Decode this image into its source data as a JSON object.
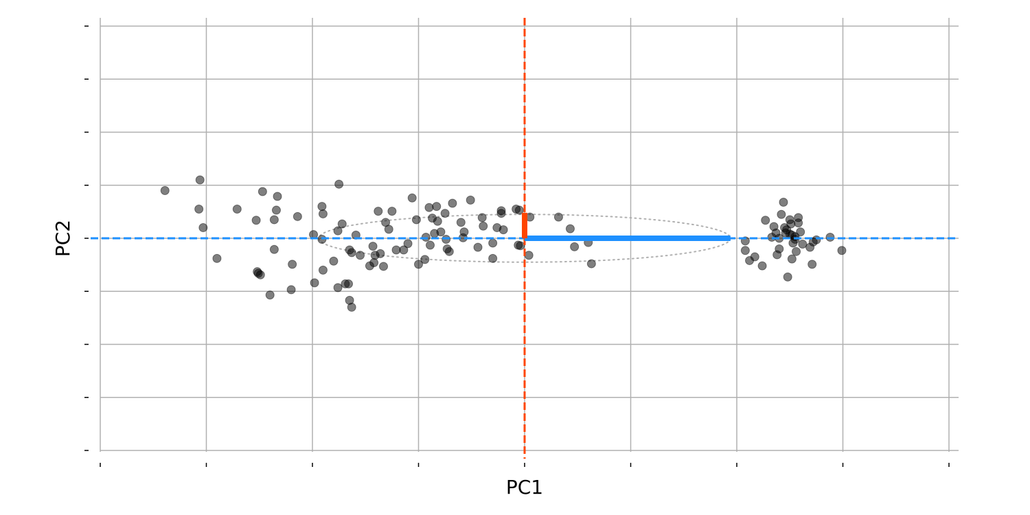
{
  "chart_data": {
    "type": "scatter",
    "title": "",
    "xlabel": "PC1",
    "ylabel": "PC2",
    "xlim": [
      -4,
      4
    ],
    "ylim": [
      -4,
      4
    ],
    "x_ticks": [
      -4,
      -3,
      -2,
      -1,
      0,
      1,
      2,
      3,
      4
    ],
    "y_ticks": [
      -4,
      -3,
      -2,
      -1,
      0,
      1,
      2,
      3,
      4
    ],
    "tick_labels_visible": false,
    "grid": true,
    "colors": {
      "points": "#000000",
      "pc1_axis": "#1E90FF",
      "pc2_axis": "#FF4500",
      "ellipse": "#b0b0b0",
      "grid": "#b0b0b0"
    },
    "center": [
      0.0,
      0.0
    ],
    "pc1_arrow": [
      1.94,
      0.0
    ],
    "pc2_arrow": [
      0.0,
      0.48
    ],
    "ellipse": {
      "rx": 1.94,
      "ry": 0.45
    },
    "points": [
      [
        -3.39,
        0.9
      ],
      [
        -3.06,
        1.1
      ],
      [
        -2.47,
        0.88
      ],
      [
        -2.33,
        0.79
      ],
      [
        -3.07,
        0.55
      ],
      [
        -3.03,
        0.2
      ],
      [
        -2.71,
        0.55
      ],
      [
        -2.53,
        0.34
      ],
      [
        -2.36,
        0.35
      ],
      [
        -2.34,
        0.53
      ],
      [
        -2.14,
        0.41
      ],
      [
        -1.91,
        0.6
      ],
      [
        -1.9,
        0.46
      ],
      [
        -1.75,
        1.02
      ],
      [
        -2.9,
        -0.38
      ],
      [
        -2.52,
        -0.63
      ],
      [
        -2.36,
        -0.21
      ],
      [
        -2.19,
        -0.49
      ],
      [
        -2.51,
        -0.66
      ],
      [
        -2.49,
        -0.69
      ],
      [
        -2.4,
        -1.07
      ],
      [
        -2.2,
        -0.97
      ],
      [
        -1.98,
        -0.84
      ],
      [
        -1.9,
        -0.6
      ],
      [
        -1.76,
        -0.93
      ],
      [
        -1.69,
        -0.86
      ],
      [
        -1.66,
        -0.86
      ],
      [
        -1.65,
        -1.17
      ],
      [
        -1.63,
        -1.3
      ],
      [
        -1.8,
        -0.43
      ],
      [
        -1.72,
        0.27
      ],
      [
        -1.76,
        0.14
      ],
      [
        -1.91,
        -0.02
      ],
      [
        -1.99,
        0.07
      ],
      [
        -1.65,
        -0.22
      ],
      [
        -1.63,
        -0.27
      ],
      [
        -1.59,
        0.06
      ],
      [
        -1.55,
        -0.32
      ],
      [
        -1.46,
        -0.52
      ],
      [
        -1.43,
        -0.15
      ],
      [
        -1.42,
        -0.46
      ],
      [
        -1.41,
        -0.32
      ],
      [
        -1.38,
        0.51
      ],
      [
        -1.36,
        -0.29
      ],
      [
        -1.33,
        -0.53
      ],
      [
        -1.31,
        0.3
      ],
      [
        -1.28,
        0.17
      ],
      [
        -1.25,
        0.51
      ],
      [
        -1.21,
        -0.22
      ],
      [
        -1.14,
        -0.22
      ],
      [
        -1.1,
        -0.1
      ],
      [
        -1.06,
        0.76
      ],
      [
        -1.02,
        0.35
      ],
      [
        -1.0,
        -0.49
      ],
      [
        -0.94,
        -0.4
      ],
      [
        -0.93,
        0.02
      ],
      [
        -0.9,
        0.58
      ],
      [
        -0.89,
        -0.13
      ],
      [
        -0.87,
        0.38
      ],
      [
        -0.85,
        0.09
      ],
      [
        -0.83,
        0.6
      ],
      [
        -0.82,
        0.32
      ],
      [
        -0.79,
        0.12
      ],
      [
        -0.75,
        0.47
      ],
      [
        -0.74,
        -0.02
      ],
      [
        -0.73,
        -0.2
      ],
      [
        -0.71,
        -0.25
      ],
      [
        -0.68,
        0.66
      ],
      [
        -0.6,
        0.3
      ],
      [
        -0.58,
        0.01
      ],
      [
        -0.57,
        0.12
      ],
      [
        -0.51,
        0.72
      ],
      [
        -0.44,
        -0.17
      ],
      [
        -0.4,
        0.39
      ],
      [
        -0.39,
        0.23
      ],
      [
        -0.3,
        -0.09
      ],
      [
        -0.26,
        0.2
      ],
      [
        -0.2,
        0.16
      ],
      [
        -0.22,
        0.52
      ],
      [
        -0.22,
        0.47
      ],
      [
        -0.3,
        -0.38
      ],
      [
        -0.05,
        0.53
      ],
      [
        -0.08,
        0.55
      ],
      [
        -0.04,
        -0.14
      ],
      [
        -0.06,
        -0.13
      ],
      [
        0.04,
        -0.32
      ],
      [
        0.05,
        0.4
      ],
      [
        0.32,
        0.4
      ],
      [
        0.43,
        0.18
      ],
      [
        0.47,
        -0.16
      ],
      [
        0.6,
        -0.08
      ],
      [
        0.63,
        -0.48
      ],
      [
        2.08,
        -0.05
      ],
      [
        2.08,
        -0.23
      ],
      [
        2.12,
        -0.42
      ],
      [
        2.17,
        -0.35
      ],
      [
        2.24,
        -0.52
      ],
      [
        2.27,
        0.34
      ],
      [
        2.33,
        0.02
      ],
      [
        2.35,
        0.22
      ],
      [
        2.37,
        0.1
      ],
      [
        2.38,
        -0.31
      ],
      [
        2.4,
        -0.2
      ],
      [
        2.42,
        0.45
      ],
      [
        2.44,
        0.68
      ],
      [
        2.46,
        0.1
      ],
      [
        2.48,
        -0.73
      ],
      [
        2.5,
        0.35
      ],
      [
        2.51,
        0.27
      ],
      [
        2.52,
        -0.39
      ],
      [
        2.53,
        -0.09
      ],
      [
        2.55,
        0.03
      ],
      [
        2.56,
        -0.25
      ],
      [
        2.58,
        0.39
      ],
      [
        2.58,
        0.29
      ],
      [
        2.6,
        0.12
      ],
      [
        2.62,
        -0.11
      ],
      [
        2.69,
        -0.17
      ],
      [
        2.71,
        -0.49
      ],
      [
        2.72,
        -0.07
      ],
      [
        2.75,
        -0.03
      ],
      [
        2.88,
        0.02
      ],
      [
        2.99,
        -0.23
      ],
      [
        2.45,
        0.2
      ],
      [
        2.5,
        0.08
      ],
      [
        2.4,
        0.0
      ],
      [
        2.55,
        -0.02
      ],
      [
        2.47,
        0.16
      ],
      [
        2.52,
        0.06
      ]
    ]
  }
}
